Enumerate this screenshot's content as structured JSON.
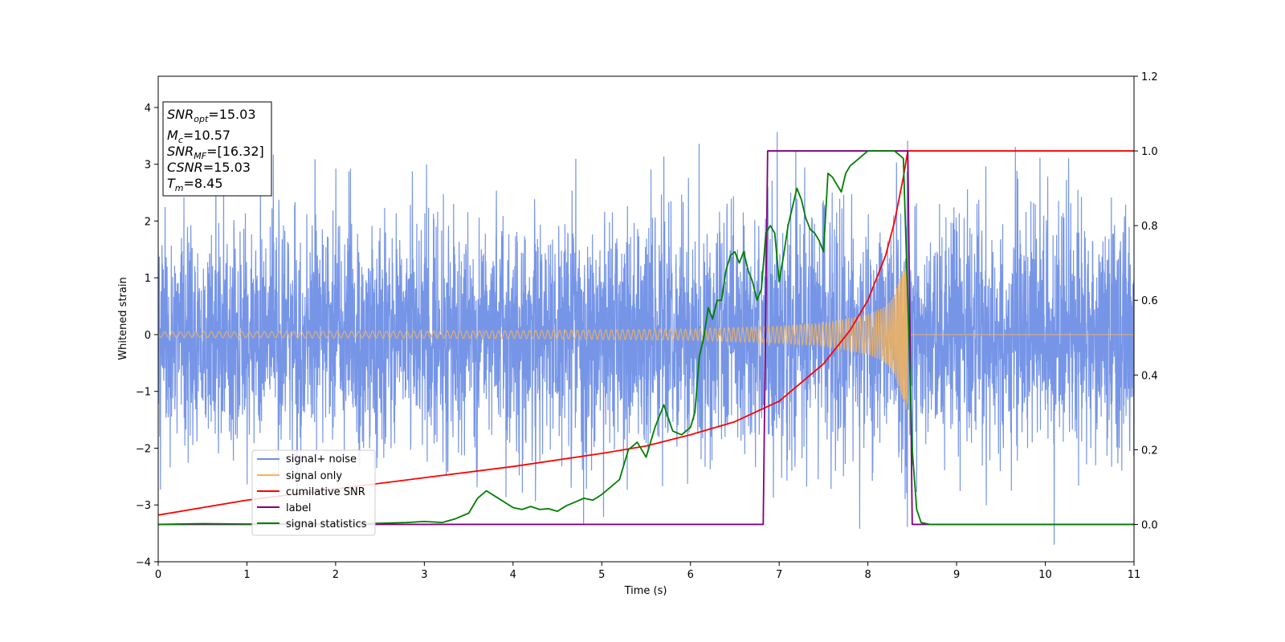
{
  "chart_data": {
    "type": "line",
    "xlabel": "Time (s)",
    "ylabel": "Whitened strain",
    "xlim": [
      0,
      11
    ],
    "ylim": [
      -4.0,
      4.55
    ],
    "y2lim": [
      -0.1,
      1.2
    ],
    "x_ticks": [
      "0",
      "1",
      "2",
      "3",
      "4",
      "5",
      "6",
      "7",
      "8",
      "9",
      "10",
      "11"
    ],
    "y_ticks": [
      "−4",
      "−3",
      "−2",
      "−1",
      "0",
      "1",
      "2",
      "3",
      "4"
    ],
    "y2_ticks": [
      "0.0",
      "0.2",
      "0.4",
      "0.6",
      "0.8",
      "1.0",
      "1.2"
    ],
    "grid": false,
    "legend_position": "lower-left",
    "info_box": {
      "snr_opt": "=15.03",
      "mc": "=10.57",
      "snr_mf": "=[16.32]",
      "csnr": "=15.03",
      "tm": "=8.45"
    },
    "series": [
      {
        "name": "signal+ noise",
        "color": "#6f8fe6",
        "axis": "left",
        "kind": "noise",
        "noise_std": 1.0,
        "signal_end": 8.45
      },
      {
        "name": "signal only",
        "color": "#f5b45a",
        "axis": "left",
        "kind": "chirp",
        "t_merge": 8.45,
        "amplitude_x": [
          0,
          2,
          4,
          6,
          7,
          7.5,
          8,
          8.2,
          8.3,
          8.4,
          8.45
        ],
        "amplitude_y": [
          0.05,
          0.06,
          0.07,
          0.1,
          0.15,
          0.2,
          0.35,
          0.5,
          0.7,
          1.2,
          1.4
        ]
      },
      {
        "name": "cumilative SNR",
        "color": "#ff0000",
        "axis": "right",
        "x": [
          0,
          1,
          2,
          3,
          4,
          5,
          5.5,
          6,
          6.5,
          7,
          7.5,
          7.8,
          8.0,
          8.2,
          8.3,
          8.4,
          8.45,
          11
        ],
        "y": [
          0.025,
          0.065,
          0.095,
          0.125,
          0.155,
          0.19,
          0.21,
          0.24,
          0.275,
          0.33,
          0.43,
          0.52,
          0.6,
          0.72,
          0.81,
          0.93,
          1.0,
          1.0
        ]
      },
      {
        "name": "label",
        "color": "#800080",
        "axis": "right",
        "x": [
          0,
          6.82,
          6.87,
          8.45,
          8.5,
          11
        ],
        "y": [
          0,
          0,
          1,
          1,
          0,
          0
        ]
      },
      {
        "name": "signal statistics",
        "color": "#007f00",
        "axis": "right",
        "x": [
          0,
          0.5,
          1,
          1.5,
          2,
          2.5,
          2.8,
          3,
          3.2,
          3.35,
          3.5,
          3.6,
          3.7,
          3.8,
          3.9,
          4.0,
          4.1,
          4.2,
          4.3,
          4.4,
          4.5,
          4.6,
          4.7,
          4.8,
          4.9,
          5.0,
          5.1,
          5.2,
          5.3,
          5.4,
          5.5,
          5.6,
          5.7,
          5.8,
          5.9,
          6.0,
          6.05,
          6.1,
          6.15,
          6.2,
          6.25,
          6.3,
          6.35,
          6.4,
          6.45,
          6.5,
          6.55,
          6.6,
          6.65,
          6.7,
          6.75,
          6.8,
          6.85,
          6.9,
          6.95,
          7.0,
          7.05,
          7.1,
          7.15,
          7.2,
          7.25,
          7.3,
          7.35,
          7.4,
          7.45,
          7.5,
          7.55,
          7.6,
          7.65,
          7.7,
          7.75,
          7.8,
          7.85,
          7.9,
          7.95,
          8.0,
          8.05,
          8.1,
          8.2,
          8.3,
          8.35,
          8.4,
          8.45,
          8.5,
          8.55,
          8.6,
          8.7,
          9,
          10,
          11
        ],
        "y": [
          0.0,
          0.002,
          0.001,
          0.002,
          0.001,
          0.003,
          0.005,
          0.008,
          0.005,
          0.015,
          0.03,
          0.07,
          0.09,
          0.075,
          0.06,
          0.045,
          0.04,
          0.048,
          0.04,
          0.042,
          0.035,
          0.05,
          0.06,
          0.07,
          0.065,
          0.08,
          0.1,
          0.12,
          0.2,
          0.22,
          0.18,
          0.26,
          0.32,
          0.25,
          0.24,
          0.26,
          0.3,
          0.45,
          0.5,
          0.58,
          0.55,
          0.6,
          0.6,
          0.68,
          0.72,
          0.73,
          0.7,
          0.73,
          0.68,
          0.65,
          0.6,
          0.63,
          0.78,
          0.8,
          0.78,
          0.65,
          0.72,
          0.8,
          0.85,
          0.9,
          0.87,
          0.82,
          0.79,
          0.78,
          0.76,
          0.73,
          0.94,
          0.93,
          0.91,
          0.89,
          0.94,
          0.96,
          0.97,
          0.98,
          0.99,
          1.0,
          1.0,
          1.0,
          1.0,
          1.0,
          0.99,
          0.98,
          0.6,
          0.2,
          0.04,
          0.005,
          0.0,
          0.0,
          0.0,
          0.0
        ]
      }
    ]
  },
  "colors": {
    "noise": "#6f8fe6",
    "signal": "#f5b45a",
    "cumsnr": "#ff0000",
    "label": "#800080",
    "stats": "#007f00"
  }
}
